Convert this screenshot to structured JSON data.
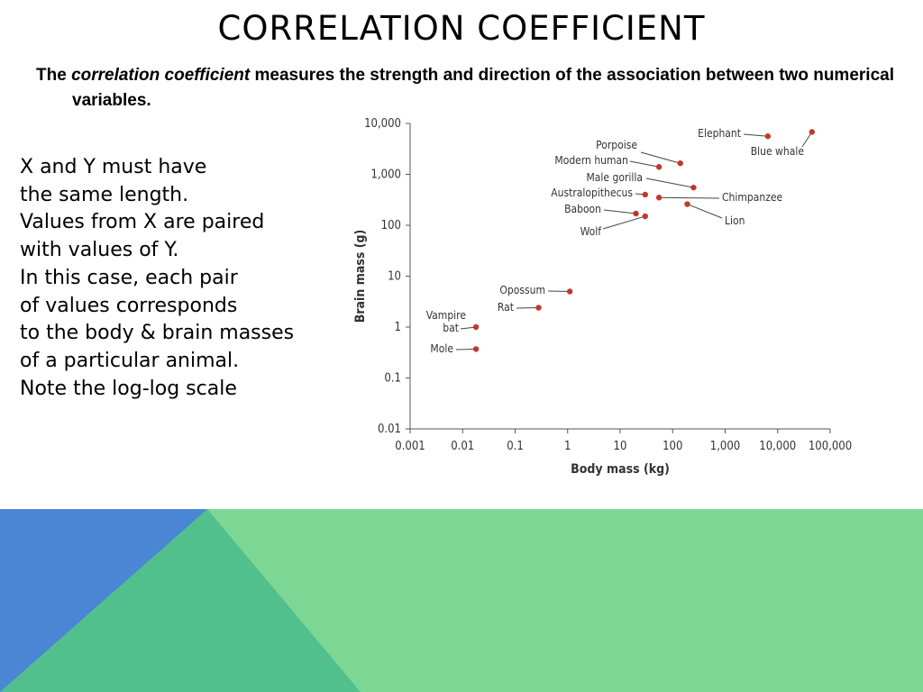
{
  "slide": {
    "title": "CORRELATION COEFFICIENT",
    "subtitle": {
      "prefix": "The ",
      "emphasis": "correlation coefficient",
      "suffix": " measures the strength and direction of the association between two numerical variables."
    },
    "notes": [
      "X and Y must have",
      "the same length.",
      "Values from X are paired",
      "with values of Y.",
      "In this case, each pair",
      "of values corresponds",
      "to the body & brain masses",
      "of a particular animal.",
      "Note the log-log scale"
    ]
  },
  "colors": {
    "point": "#c0392b",
    "axis": "#555555",
    "band_blue": "#4a86d4",
    "band_teal": "#52c08c",
    "band_green": "#7dd794"
  },
  "chart_data": {
    "type": "scatter",
    "scale": "log-log",
    "xlabel": "Body mass (kg)",
    "ylabel": "Brain mass (g)",
    "xlim": [
      0.001,
      100000
    ],
    "ylim": [
      0.01,
      10000
    ],
    "x_ticks": [
      "0.001",
      "0.01",
      "0.1",
      "1",
      "10",
      "100",
      "1,000",
      "10,000",
      "100,000"
    ],
    "y_ticks": [
      "0.01",
      "0.1",
      "1",
      "10",
      "100",
      "1,000",
      "10,000"
    ],
    "points": [
      {
        "name": "Elephant",
        "x": 6500,
        "y": 5600
      },
      {
        "name": "Blue whale",
        "x": 45000,
        "y": 6800
      },
      {
        "name": "Porpoise",
        "x": 140,
        "y": 1650
      },
      {
        "name": "Modern human",
        "x": 55,
        "y": 1400
      },
      {
        "name": "Male gorilla",
        "x": 250,
        "y": 550
      },
      {
        "name": "Australopithecus",
        "x": 30,
        "y": 400
      },
      {
        "name": "Chimpanzee",
        "x": 55,
        "y": 350
      },
      {
        "name": "Baboon",
        "x": 20,
        "y": 170
      },
      {
        "name": "Lion",
        "x": 190,
        "y": 260
      },
      {
        "name": "Wolf",
        "x": 30,
        "y": 150
      },
      {
        "name": "Opossum",
        "x": 1.1,
        "y": 5
      },
      {
        "name": "Rat",
        "x": 0.28,
        "y": 2.4
      },
      {
        "name": "Vampire bat",
        "x": 0.018,
        "y": 1
      },
      {
        "name": "Mole",
        "x": 0.018,
        "y": 0.37
      }
    ]
  }
}
